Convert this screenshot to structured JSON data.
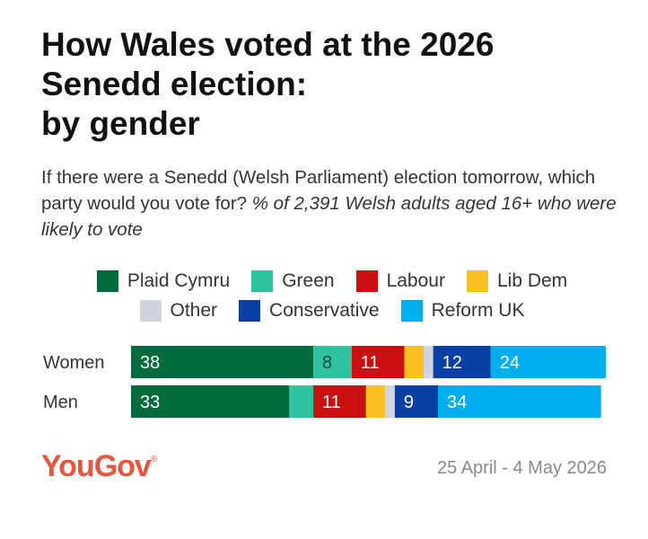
{
  "title_lines": [
    "How Wales voted at the 2026",
    "Senedd election:",
    "by gender"
  ],
  "subtitle": "If there were a Senedd (Welsh Parliament) election tomorrow, which party would you vote for?",
  "subtitle_note": "% of 2,391 Welsh adults aged 16+ who were likely to vote",
  "legend": [
    [
      {
        "name": "Plaid Cymru",
        "color": "#006b3f"
      },
      {
        "name": "Green",
        "color": "#2ec4a0"
      },
      {
        "name": "Labour",
        "color": "#c81010"
      },
      {
        "name": "Lib Dem",
        "color": "#fbbf24"
      }
    ],
    [
      {
        "name": "Other",
        "color": "#cfd4df"
      },
      {
        "name": "Conservative",
        "color": "#0a3fa4"
      },
      {
        "name": "Reform UK",
        "color": "#00aef0"
      }
    ]
  ],
  "chart_data": {
    "type": "bar",
    "orientation": "horizontal",
    "stacked": true,
    "categories": [
      "Women",
      "Men"
    ],
    "series": [
      {
        "name": "Plaid Cymru",
        "color": "#006b3f",
        "values": [
          38,
          33
        ],
        "labels": [
          "38",
          "33"
        ],
        "label_color": "#ffffff"
      },
      {
        "name": "Green",
        "color": "#2ec4a0",
        "values": [
          8,
          5
        ],
        "labels": [
          "8",
          ""
        ],
        "label_color": "#1a4a3a"
      },
      {
        "name": "Labour",
        "color": "#c81010",
        "values": [
          11,
          11
        ],
        "labels": [
          "11",
          "11"
        ],
        "label_color": "#ffffff"
      },
      {
        "name": "Lib Dem",
        "color": "#fbbf24",
        "values": [
          4,
          4
        ],
        "labels": [
          "",
          ""
        ],
        "label_color": "#333333"
      },
      {
        "name": "Other",
        "color": "#cfd4df",
        "values": [
          2,
          2
        ],
        "labels": [
          "",
          ""
        ],
        "label_color": "#333333"
      },
      {
        "name": "Conservative",
        "color": "#0a3fa4",
        "values": [
          12,
          9
        ],
        "labels": [
          "12",
          "9"
        ],
        "label_color": "#ffffff"
      },
      {
        "name": "Reform UK",
        "color": "#00aef0",
        "values": [
          24,
          34
        ],
        "labels": [
          "24",
          "34"
        ],
        "label_color": "#ffffff"
      }
    ],
    "xlim": [
      0,
      99
    ],
    "legend": "top-center",
    "grid": false
  },
  "logo": "YouGov",
  "logo_mark": "®",
  "dates": "25 April - 4 May 2026"
}
